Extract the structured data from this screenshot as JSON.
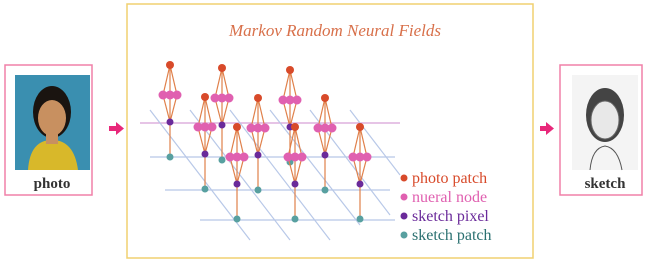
{
  "left_panel": {
    "label": "photo"
  },
  "center_panel": {
    "title": "Markov Random Neural Fields",
    "legend": [
      {
        "label": "photo patch"
      },
      {
        "label": "nueral node"
      },
      {
        "label": "sketch pixel"
      },
      {
        "label": "sketch patch"
      }
    ]
  },
  "right_panel": {
    "label": "sketch"
  }
}
